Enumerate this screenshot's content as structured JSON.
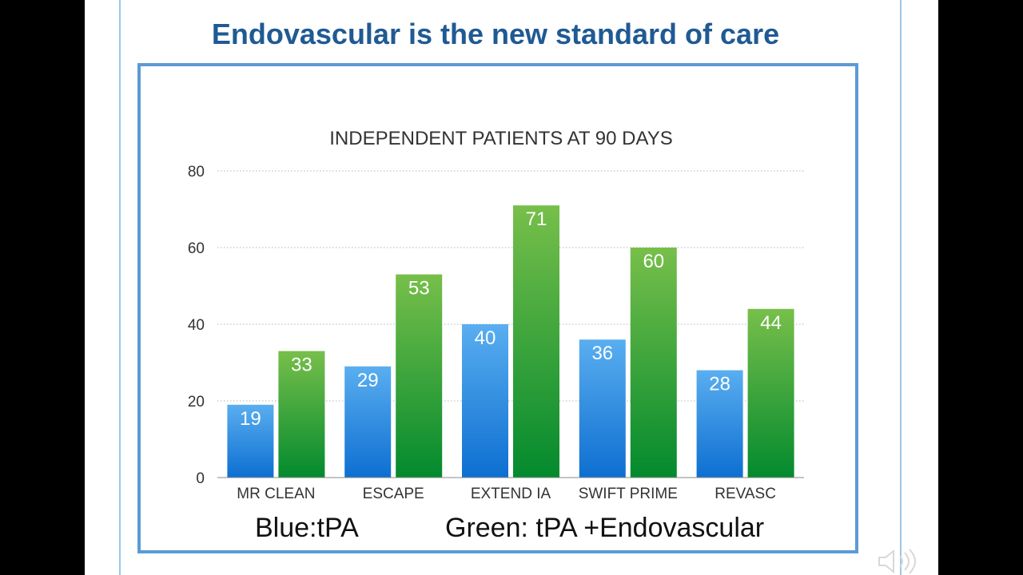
{
  "slide": {
    "title": "Endovascular is the new standard of care",
    "legend_blue": "Blue:tPA",
    "legend_green": "Green: tPA +Endovascular"
  },
  "colors": {
    "title": "#1f5a93",
    "frame": "#5b9bd5",
    "blue_top": "#5aaef0",
    "blue_bottom": "#0d6fd1",
    "green_top": "#77bf4a",
    "green_bottom": "#038a2e"
  },
  "chart_data": {
    "type": "bar",
    "title": "INDEPENDENT PATIENTS AT 90 DAYS",
    "categories": [
      "MR CLEAN",
      "ESCAPE",
      "EXTEND IA",
      "SWIFT PRIME",
      "REVASC"
    ],
    "series": [
      {
        "name": "tPA",
        "color": "blue",
        "values": [
          19,
          29,
          40,
          36,
          28
        ]
      },
      {
        "name": "tPA +Endovascular",
        "color": "green",
        "values": [
          33,
          53,
          71,
          60,
          44
        ]
      }
    ],
    "yticks": [
      0,
      20,
      40,
      60,
      80
    ],
    "ylim": [
      0,
      80
    ],
    "xlabel": "",
    "ylabel": "",
    "grid": true
  }
}
